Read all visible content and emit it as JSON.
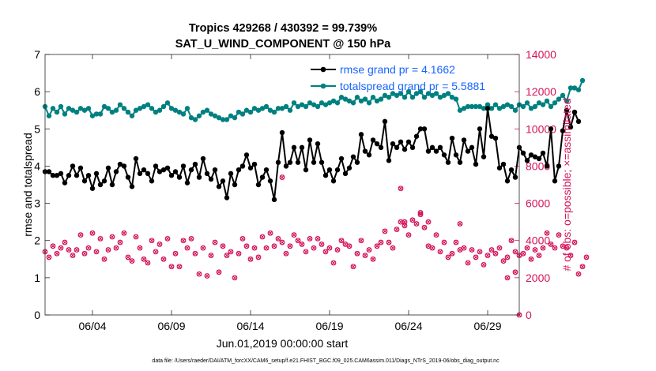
{
  "chart_data": {
    "type": "line",
    "title_line1": "Tropics 429268 / 430392 = 99.739%",
    "title_line2": "SAT_U_WIND_COMPONENT @ 150 hPa",
    "xlabel": "Jun.01,2019 00:00:00 start",
    "ylabel_left": "rmse and totalspread",
    "ylabel_right": "# of obs: o=possible; ×=assimilated",
    "ylim_left": [
      0,
      7
    ],
    "ylim_right": [
      0,
      14000
    ],
    "xlim": [
      1,
      31
    ],
    "x_ticks": [
      {
        "x": 4,
        "label": "06/04"
      },
      {
        "x": 9,
        "label": "06/09"
      },
      {
        "x": 14,
        "label": "06/14"
      },
      {
        "x": 19,
        "label": "06/19"
      },
      {
        "x": 24,
        "label": "06/24"
      },
      {
        "x": 29,
        "label": "06/29"
      }
    ],
    "y_ticks_left": [
      {
        "v": 0,
        "label": "0"
      },
      {
        "v": 1,
        "label": "1"
      },
      {
        "v": 2,
        "label": "2"
      },
      {
        "v": 3,
        "label": "3"
      },
      {
        "v": 4,
        "label": "4"
      },
      {
        "v": 5,
        "label": "5"
      },
      {
        "v": 6,
        "label": "6"
      },
      {
        "v": 7,
        "label": "7"
      }
    ],
    "y_ticks_right": [
      {
        "v": 0,
        "label": "0"
      },
      {
        "v": 2000,
        "label": "2000"
      },
      {
        "v": 4000,
        "label": "4000"
      },
      {
        "v": 6000,
        "label": "6000"
      },
      {
        "v": 8000,
        "label": "8000"
      },
      {
        "v": 10000,
        "label": "10000"
      },
      {
        "v": 12000,
        "label": "12000"
      },
      {
        "v": 14000,
        "label": "14000"
      }
    ],
    "series": [
      {
        "name": "rmse",
        "legend": "rmse grand pr = 4.1662",
        "color": "#000000",
        "x_start": 1.0,
        "x_step": 0.25,
        "values": [
          3.85,
          3.85,
          3.75,
          3.75,
          3.8,
          3.55,
          3.75,
          4.0,
          3.75,
          3.95,
          3.6,
          3.75,
          3.4,
          3.8,
          3.5,
          3.6,
          3.95,
          3.5,
          3.85,
          4.05,
          4.0,
          3.7,
          3.45,
          4.2,
          3.8,
          3.9,
          3.8,
          3.6,
          4.0,
          3.85,
          3.9,
          3.95,
          3.75,
          3.85,
          3.7,
          4.0,
          3.55,
          3.9,
          4.05,
          3.7,
          4.2,
          3.8,
          3.65,
          3.9,
          3.45,
          3.6,
          3.15,
          3.8,
          3.5,
          3.9,
          4.0,
          4.3,
          3.95,
          4.05,
          3.5,
          3.7,
          3.9,
          3.6,
          3.1,
          4.1,
          4.9,
          4.0,
          4.1,
          4.5,
          4.1,
          4.5,
          3.9,
          4.7,
          4.1,
          4.6,
          4.1,
          3.75,
          3.9,
          3.6,
          3.9,
          4.2,
          3.8,
          3.95,
          4.25,
          4.1,
          4.85,
          4.4,
          4.3,
          4.7,
          4.6,
          4.5,
          5.2,
          4.15,
          4.6,
          4.5,
          4.65,
          4.45,
          4.65,
          4.5,
          4.8,
          5.0,
          5.0,
          4.4,
          4.5,
          4.4,
          4.5,
          4.3,
          4.1,
          4.75,
          4.3,
          4.1,
          4.7,
          4.4,
          4.5,
          4.05,
          5.0,
          4.25,
          5.55,
          4.8,
          4.75,
          3.95,
          4.05,
          3.6,
          3.9,
          3.7,
          4.5,
          4.35,
          4.15,
          4.3,
          4.25,
          4.2,
          4.35,
          4.0,
          5.0,
          3.6,
          4.0,
          4.95,
          5.5,
          5.05,
          5.45,
          5.2
        ]
      },
      {
        "name": "totalspread",
        "legend": "totalspread grand pr = 5.5881",
        "color": "#008080",
        "x_start": 1.0,
        "x_step": 0.25,
        "values": [
          5.6,
          5.35,
          5.55,
          5.45,
          5.6,
          5.4,
          5.55,
          5.5,
          5.45,
          5.55,
          5.5,
          5.55,
          5.35,
          5.4,
          5.4,
          5.6,
          5.55,
          5.45,
          5.5,
          5.65,
          5.55,
          5.45,
          5.35,
          5.5,
          5.55,
          5.6,
          5.65,
          5.55,
          5.45,
          5.5,
          5.6,
          5.7,
          5.55,
          5.5,
          5.45,
          5.4,
          5.55,
          5.3,
          5.25,
          5.35,
          5.45,
          5.5,
          5.4,
          5.35,
          5.3,
          5.25,
          5.25,
          5.35,
          5.3,
          5.45,
          5.4,
          5.5,
          5.45,
          5.55,
          5.5,
          5.55,
          5.6,
          5.5,
          5.45,
          5.55,
          5.55,
          5.6,
          5.5,
          5.7,
          5.6,
          5.65,
          5.6,
          5.7,
          5.65,
          5.6,
          5.7,
          5.65,
          5.7,
          5.75,
          5.7,
          5.85,
          5.8,
          5.75,
          5.7,
          5.85,
          5.75,
          5.8,
          5.7,
          5.85,
          5.75,
          5.8,
          5.9,
          5.85,
          5.95,
          5.9,
          5.95,
          5.85,
          6.0,
          5.85,
          5.95,
          6.0,
          5.85,
          5.95,
          5.9,
          5.95,
          5.85,
          5.9,
          5.95,
          5.85,
          5.8,
          5.5,
          5.55,
          5.6,
          5.6,
          5.6,
          5.6,
          5.55,
          5.65,
          5.55,
          5.65,
          5.55,
          5.6,
          5.65,
          5.6,
          5.5,
          5.65,
          5.6,
          5.7,
          5.55,
          5.6,
          5.7,
          5.65,
          5.75,
          5.6,
          5.7,
          5.8,
          5.9,
          5.75,
          6.1,
          6.1,
          6.05,
          6.3
        ]
      }
    ],
    "obs_possible": {
      "name": "# of obs possible",
      "color": "#d4145a",
      "x_start": 1.0,
      "x_step": 0.25,
      "values": [
        3400,
        3100,
        3700,
        3300,
        3600,
        3900,
        3500,
        3200,
        3500,
        4300,
        3300,
        3600,
        4400,
        3400,
        4100,
        3000,
        3500,
        4200,
        3600,
        3900,
        4400,
        3100,
        2900,
        4200,
        3600,
        3000,
        2800,
        4000,
        3400,
        3800,
        3000,
        4100,
        2600,
        3300,
        2600,
        4000,
        3600,
        4100,
        3300,
        2200,
        3600,
        2100,
        3200,
        3900,
        2300,
        3700,
        3200,
        3400,
        2000,
        3300,
        4100,
        3700,
        3000,
        3600,
        3100,
        4200,
        3600,
        4400,
        3700,
        4100,
        3900,
        3300,
        3700,
        4300,
        4000,
        3800,
        3400,
        4100,
        3600,
        4100,
        3800,
        3400,
        3600,
        2800,
        3500,
        4000,
        3800,
        3700,
        2600,
        3300,
        4000,
        3200,
        3500,
        3000,
        3700,
        3900,
        4500,
        3900,
        3600,
        4600,
        5000,
        4800,
        4300,
        5100,
        4900,
        5400,
        4700,
        3700,
        3600,
        4300,
        3400,
        3900,
        3100,
        3300,
        3900,
        3500,
        3600,
        2800,
        3500,
        3100,
        3400,
        2700,
        3200,
        3500,
        3300,
        3600,
        2900,
        3100,
        4000,
        3400,
        3200,
        3300,
        3600,
        3000,
        3500,
        3200,
        3600,
        4400,
        3800,
        3600,
        4300,
        3700,
        3600,
        3200,
        3900,
        2200,
        2600,
        3100
      ]
    },
    "obs_assimilated": {
      "name": "# of obs assimilated",
      "color": "#d4145a",
      "x_start": 1.0,
      "x_step": 0.25,
      "values": [
        3400,
        3100,
        3700,
        3300,
        3600,
        3900,
        3500,
        3200,
        3500,
        4300,
        3300,
        3600,
        4400,
        3400,
        4100,
        3000,
        3500,
        4200,
        3600,
        3900,
        4400,
        3100,
        2900,
        4200,
        3600,
        3000,
        2800,
        4000,
        3400,
        3800,
        3000,
        4100,
        2600,
        3300,
        2600,
        4000,
        3600,
        4100,
        3300,
        2200,
        3600,
        2100,
        3200,
        3900,
        2300,
        3700,
        3200,
        3400,
        2000,
        3300,
        4100,
        3700,
        3000,
        3600,
        3100,
        4200,
        3600,
        4400,
        3700,
        4100,
        3900,
        3300,
        3700,
        4300,
        4000,
        3800,
        3400,
        4100,
        3600,
        4100,
        3800,
        3400,
        3600,
        2800,
        3500,
        4000,
        3800,
        3700,
        2600,
        3300,
        4000,
        3200,
        3500,
        3000,
        3700,
        3900,
        4500,
        3900,
        3600,
        4600,
        5000,
        4800,
        4300,
        5100,
        4900,
        5400,
        4700,
        3700,
        3600,
        4300,
        3400,
        3900,
        3100,
        3300,
        3900,
        3500,
        3600,
        2800,
        3500,
        3100,
        3400,
        2700,
        3200,
        3500,
        3300,
        3600,
        2900,
        3100,
        4000,
        3400,
        3200,
        3300,
        3600,
        3000,
        3500,
        3200,
        3600,
        4400,
        3800,
        3600,
        4300,
        3700,
        3600,
        3200,
        3900,
        2200,
        2600,
        3100
      ]
    },
    "extra_obs_points": [
      {
        "x": 16.0,
        "y": 7400
      },
      {
        "x": 23.5,
        "y": 6800
      },
      {
        "x": 23.75,
        "y": 5000
      },
      {
        "x": 24.75,
        "y": 5500
      },
      {
        "x": 25.25,
        "y": 5000
      },
      {
        "x": 27.25,
        "y": 4900
      },
      {
        "x": 30.25,
        "y": 2000
      },
      {
        "x": 30.75,
        "y": 2300
      },
      {
        "x": 31.0,
        "y": 0
      }
    ],
    "footnote": "data file: /Users/raeder/DAI/ATM_forcXX/CAM6_setup/f.e21.FHIST_BGC.f09_025.CAM6assim.011/Diags_NTrS_2019-06/obs_diag_output.nc"
  }
}
